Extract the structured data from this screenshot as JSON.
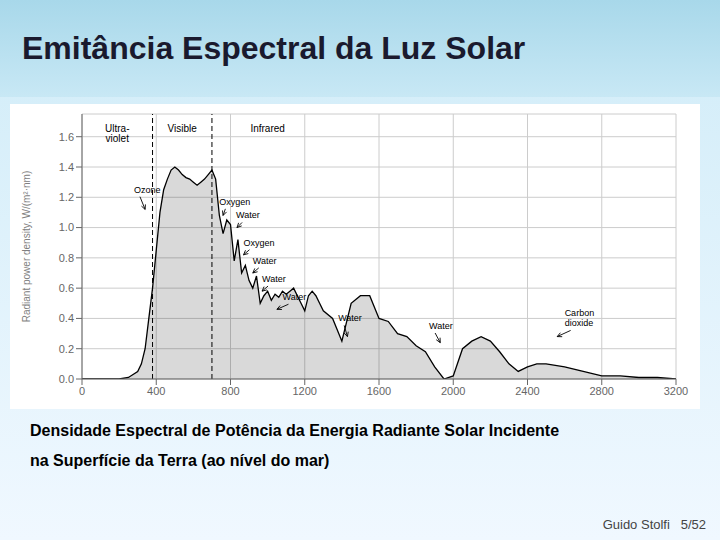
{
  "chart_data": {
    "type": "line",
    "title": "Emitância Espectral da Luz Solar",
    "caption": [
      "Densidade Espectral de Potência da Energia Radiante Solar Incidente",
      "na Superfície da Terra (ao nível do mar)"
    ],
    "footer": "Guido Stolfi   5/52",
    "ylabel": "Radiant power density, W/(m²·nm)",
    "color": "#000000",
    "grid": true,
    "xlim": [
      0,
      3200
    ],
    "xticks": [
      0,
      400,
      800,
      1200,
      1600,
      2000,
      2400,
      2800,
      3200
    ],
    "ylim": [
      0,
      1.75
    ],
    "yticks": [
      {
        "value": 0,
        "label": "0.0"
      },
      0.2,
      0.4,
      0.6,
      0.8,
      {
        "value": 1.0,
        "label": "1.0"
      },
      1.2,
      1.4,
      1.6
    ],
    "region_dividers": [
      380,
      700
    ],
    "region_labels": [
      {
        "text": "Ultra-\nviolet",
        "x": 190,
        "y": 1.68
      },
      {
        "text": "Visible",
        "x": 540,
        "y": 1.68
      },
      {
        "text": "Infrared",
        "x": 1000,
        "y": 1.68
      }
    ],
    "annotations": [
      {
        "text": "Ozone",
        "x": 280,
        "y": 1.25,
        "arrow_x": 340,
        "arrow_y": 1.12
      },
      {
        "text": "Oxygen",
        "x": 740,
        "y": 1.17,
        "arrow_x": 760,
        "arrow_y": 1.08
      },
      {
        "text": "Water",
        "x": 830,
        "y": 1.08,
        "arrow_x": 835,
        "arrow_y": 1.0
      },
      {
        "text": "Oxygen",
        "x": 870,
        "y": 0.9,
        "arrow_x": 870,
        "arrow_y": 0.82
      },
      {
        "text": "Water",
        "x": 920,
        "y": 0.78,
        "arrow_x": 920,
        "arrow_y": 0.7
      },
      {
        "text": "Water",
        "x": 970,
        "y": 0.66,
        "arrow_x": 970,
        "arrow_y": 0.58
      },
      {
        "text": "Water",
        "x": 1080,
        "y": 0.54,
        "arrow_x": 1050,
        "arrow_y": 0.46
      },
      {
        "text": "Water",
        "x": 1380,
        "y": 0.4,
        "arrow_x": 1430,
        "arrow_y": 0.28
      },
      {
        "text": "Water",
        "x": 1870,
        "y": 0.35,
        "arrow_x": 1930,
        "arrow_y": 0.24
      },
      {
        "text": "Carbon\ndioxide",
        "x": 2600,
        "y": 0.4,
        "arrow_x": 2560,
        "arrow_y": 0.28
      }
    ],
    "x": [
      0,
      50,
      100,
      150,
      200,
      250,
      300,
      320,
      340,
      360,
      380,
      400,
      420,
      440,
      460,
      480,
      500,
      520,
      540,
      560,
      580,
      600,
      620,
      640,
      660,
      680,
      700,
      720,
      740,
      760,
      780,
      800,
      820,
      840,
      860,
      880,
      900,
      920,
      940,
      960,
      980,
      1000,
      1020,
      1040,
      1060,
      1080,
      1100,
      1120,
      1140,
      1160,
      1180,
      1200,
      1220,
      1240,
      1260,
      1280,
      1300,
      1350,
      1400,
      1450,
      1500,
      1550,
      1600,
      1650,
      1700,
      1750,
      1800,
      1850,
      1900,
      1950,
      2000,
      2050,
      2100,
      2150,
      2200,
      2250,
      2300,
      2350,
      2400,
      2450,
      2500,
      2600,
      2700,
      2800,
      2900,
      3000,
      3100,
      3200
    ],
    "values": [
      0,
      0,
      0,
      0,
      0,
      0.01,
      0.05,
      0.1,
      0.2,
      0.4,
      0.6,
      0.85,
      1.1,
      1.25,
      1.32,
      1.38,
      1.4,
      1.38,
      1.35,
      1.33,
      1.32,
      1.3,
      1.28,
      1.3,
      1.32,
      1.35,
      1.38,
      1.32,
      1.08,
      0.96,
      1.05,
      1.02,
      0.78,
      0.92,
      0.7,
      0.75,
      0.65,
      0.6,
      0.68,
      0.5,
      0.55,
      0.58,
      0.52,
      0.56,
      0.54,
      0.58,
      0.56,
      0.58,
      0.6,
      0.55,
      0.5,
      0.45,
      0.55,
      0.58,
      0.55,
      0.5,
      0.45,
      0.4,
      0.25,
      0.5,
      0.55,
      0.55,
      0.4,
      0.38,
      0.3,
      0.28,
      0.22,
      0.18,
      0.08,
      0.0,
      0.02,
      0.2,
      0.25,
      0.28,
      0.25,
      0.18,
      0.1,
      0.05,
      0.08,
      0.1,
      0.1,
      0.08,
      0.05,
      0.02,
      0.02,
      0.01,
      0.01,
      0.0
    ]
  }
}
